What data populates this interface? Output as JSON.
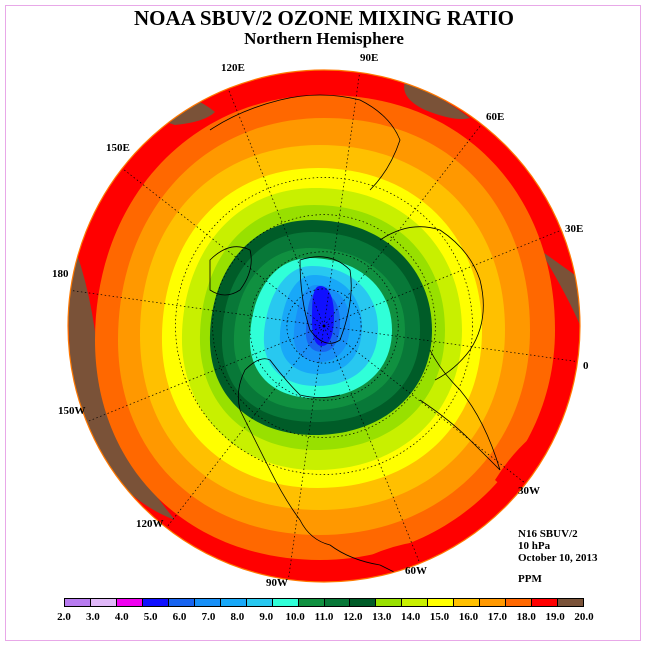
{
  "title": "NOAA SBUV/2 OZONE MIXING RATIO",
  "subtitle": "Northern Hemisphere",
  "longitude_labels": [
    {
      "text": "120E",
      "lon": 120
    },
    {
      "text": "90E",
      "lon": 90
    },
    {
      "text": "60E",
      "lon": 60
    },
    {
      "text": "150E",
      "lon": 150
    },
    {
      "text": "30E",
      "lon": 30
    },
    {
      "text": "180",
      "lon": 180
    },
    {
      "text": "0",
      "lon": 0
    },
    {
      "text": "150W",
      "lon": -150
    },
    {
      "text": "30W",
      "lon": -30
    },
    {
      "text": "120W",
      "lon": -120
    },
    {
      "text": "60W",
      "lon": -60
    },
    {
      "text": "90W",
      "lon": -90
    }
  ],
  "info": {
    "instrument": "N16 SBUV/2",
    "level": "10 hPa",
    "date": "October 10, 2013",
    "units": "PPM"
  },
  "colorbar": {
    "ticks": [
      "2.0",
      "3.0",
      "4.0",
      "5.0",
      "6.0",
      "7.0",
      "8.0",
      "9.0",
      "10.0",
      "11.0",
      "12.0",
      "13.0",
      "14.0",
      "15.0",
      "16.0",
      "17.0",
      "18.0",
      "19.0",
      "20.0"
    ],
    "colors": [
      "#b87cf0",
      "#e0b8f8",
      "#f000f0",
      "#1010ff",
      "#1864f0",
      "#1890f8",
      "#18a8f8",
      "#28c8f0",
      "#30ffd8",
      "#109040",
      "#087838",
      "#005c28",
      "#98e000",
      "#c8f000",
      "#ffff00",
      "#ffc000",
      "#ff9800",
      "#ff6800",
      "#ff0000",
      "#7a5238"
    ]
  },
  "map_fields": {
    "projection": "north polar stereographic",
    "land_color": "#7a5238",
    "band_levels": [
      19,
      18,
      17,
      16,
      15,
      14,
      13,
      12,
      11,
      10,
      9,
      8,
      7,
      6,
      5
    ]
  }
}
